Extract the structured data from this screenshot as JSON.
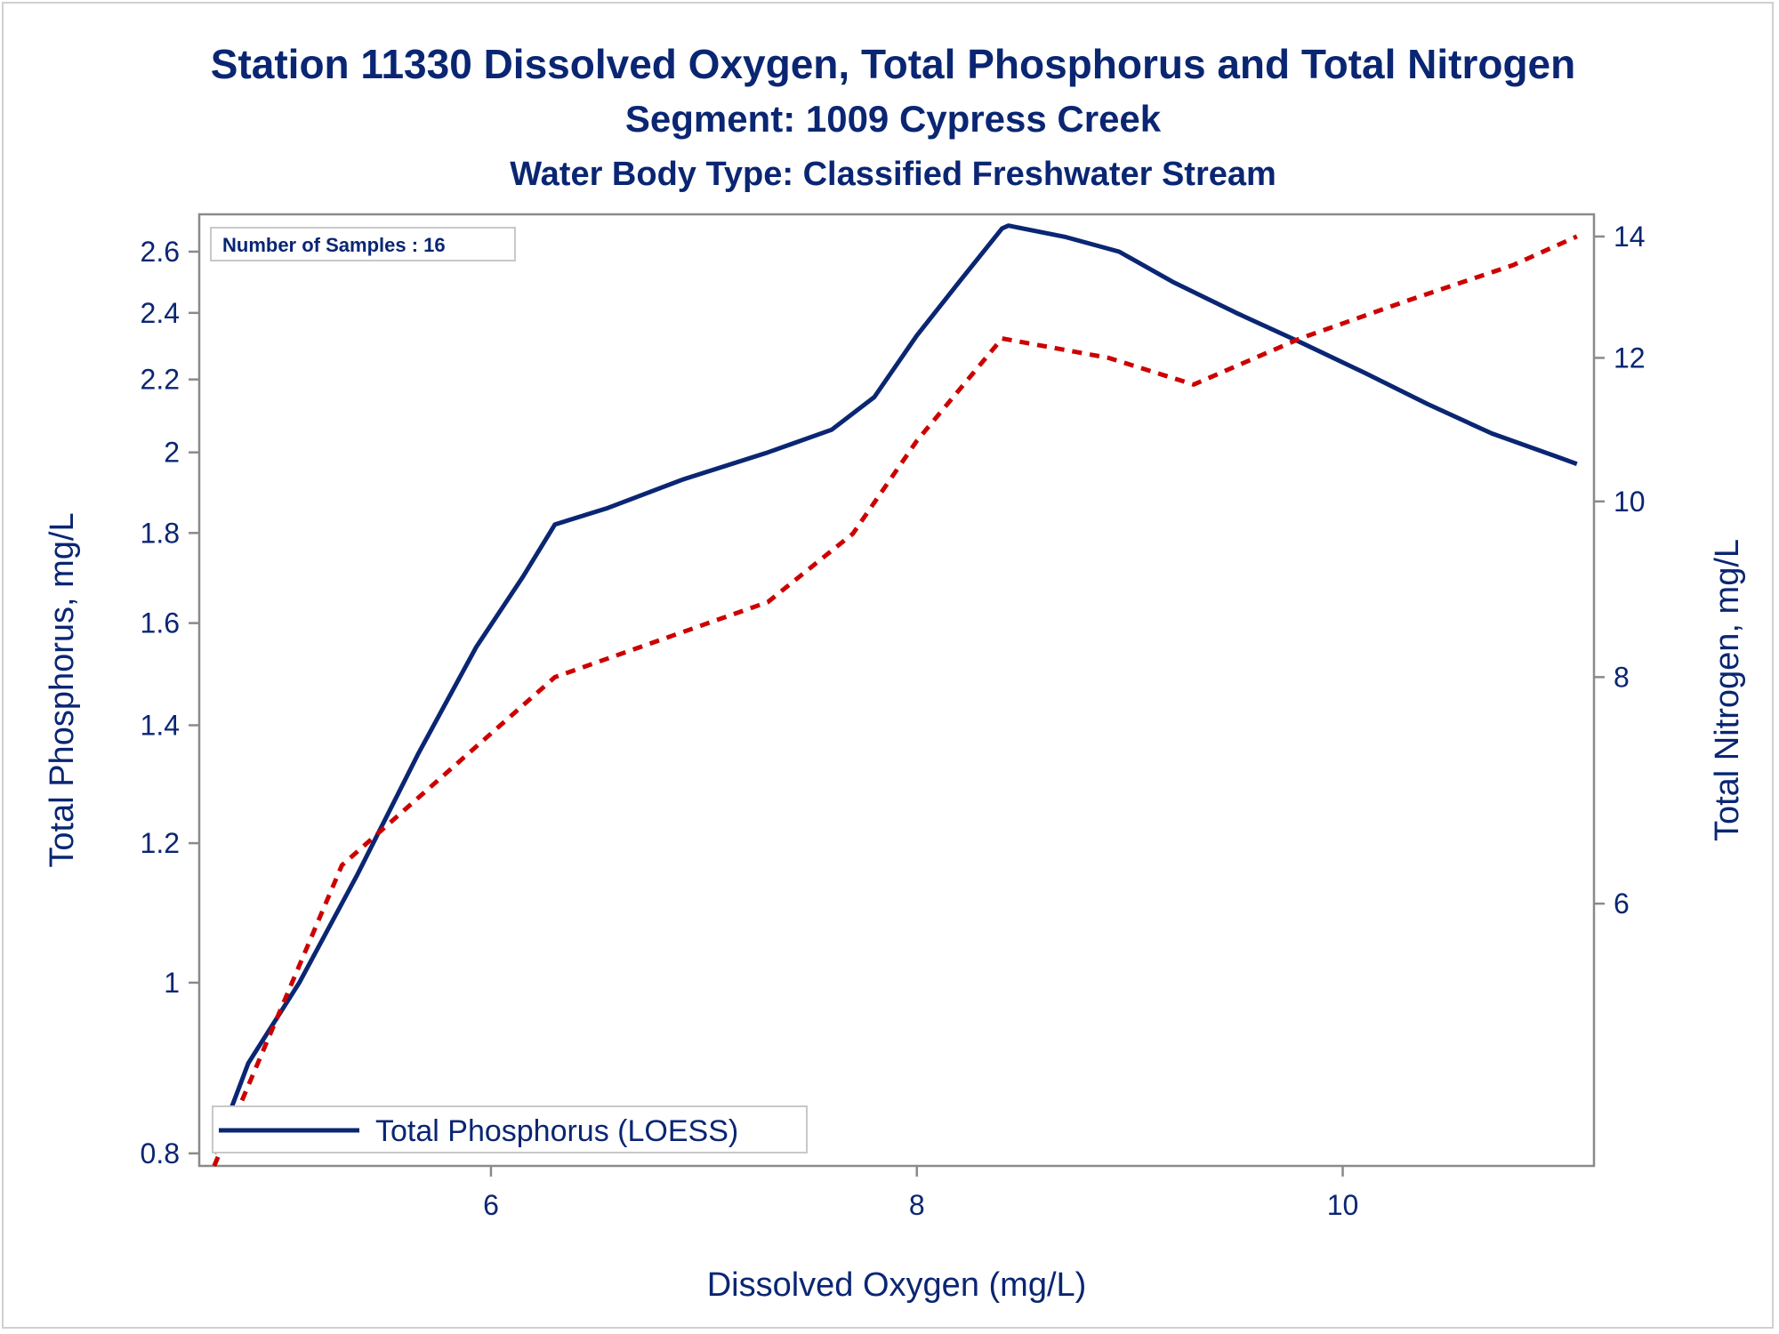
{
  "chart_data": {
    "type": "line",
    "title": "Station 11330  Dissolved Oxygen, Total Phosphorus and Total Nitrogen",
    "subtitle": "Segment: 1009  Cypress Creek",
    "subtitle2": "Water Body Type: Classified Freshwater Stream",
    "xlabel": "Dissolved Oxygen (mg/L)",
    "ylabel": "Total Phosphorus, mg/L",
    "y2label": "Total Nitrogen, mg/L",
    "annotation": "Number of Samples : 16",
    "x_ticks": [
      6,
      8,
      10
    ],
    "y_ticks": [
      0.8,
      1,
      1.2,
      1.4,
      1.6,
      1.8,
      2,
      2.2,
      2.4,
      2.6
    ],
    "y2_ticks": [
      6,
      8,
      10,
      12,
      14
    ],
    "xlim": [
      4.63,
      11.18
    ],
    "ylim": [
      0.787,
      2.73
    ],
    "y_scale": "log",
    "y2lim": [
      4.3,
      14.4
    ],
    "y2_scale": "log",
    "legend_position": "bottom-left",
    "series": [
      {
        "name": "Total Phosphorus (LOESS)",
        "axis": "left",
        "color": "#0a2673",
        "style": "solid",
        "x": [
          4.7,
          4.86,
          5.1,
          5.37,
          5.66,
          5.93,
          6.15,
          6.3,
          6.55,
          6.9,
          7.3,
          7.6,
          7.8,
          8.0,
          8.2,
          8.4,
          8.43,
          8.7,
          8.95,
          9.2,
          9.5,
          9.8,
          10.1,
          10.4,
          10.7,
          11.0,
          11.1
        ],
        "values": [
          0.8,
          0.9,
          1.0,
          1.15,
          1.35,
          1.55,
          1.7,
          1.82,
          1.86,
          1.93,
          2.0,
          2.06,
          2.15,
          2.33,
          2.5,
          2.68,
          2.69,
          2.65,
          2.6,
          2.5,
          2.4,
          2.31,
          2.22,
          2.13,
          2.05,
          1.99,
          1.97
        ]
      },
      {
        "axis": "right",
        "color": "#cc0000",
        "style": "dashed",
        "x": [
          4.7,
          5.3,
          6.3,
          7.3,
          7.7,
          8.0,
          8.4,
          8.9,
          9.3,
          9.8,
          10.3,
          10.8,
          11.1
        ],
        "values": [
          4.3,
          6.3,
          8.0,
          8.8,
          9.6,
          10.8,
          12.3,
          12.0,
          11.6,
          12.3,
          12.9,
          13.5,
          14.0
        ]
      }
    ]
  }
}
